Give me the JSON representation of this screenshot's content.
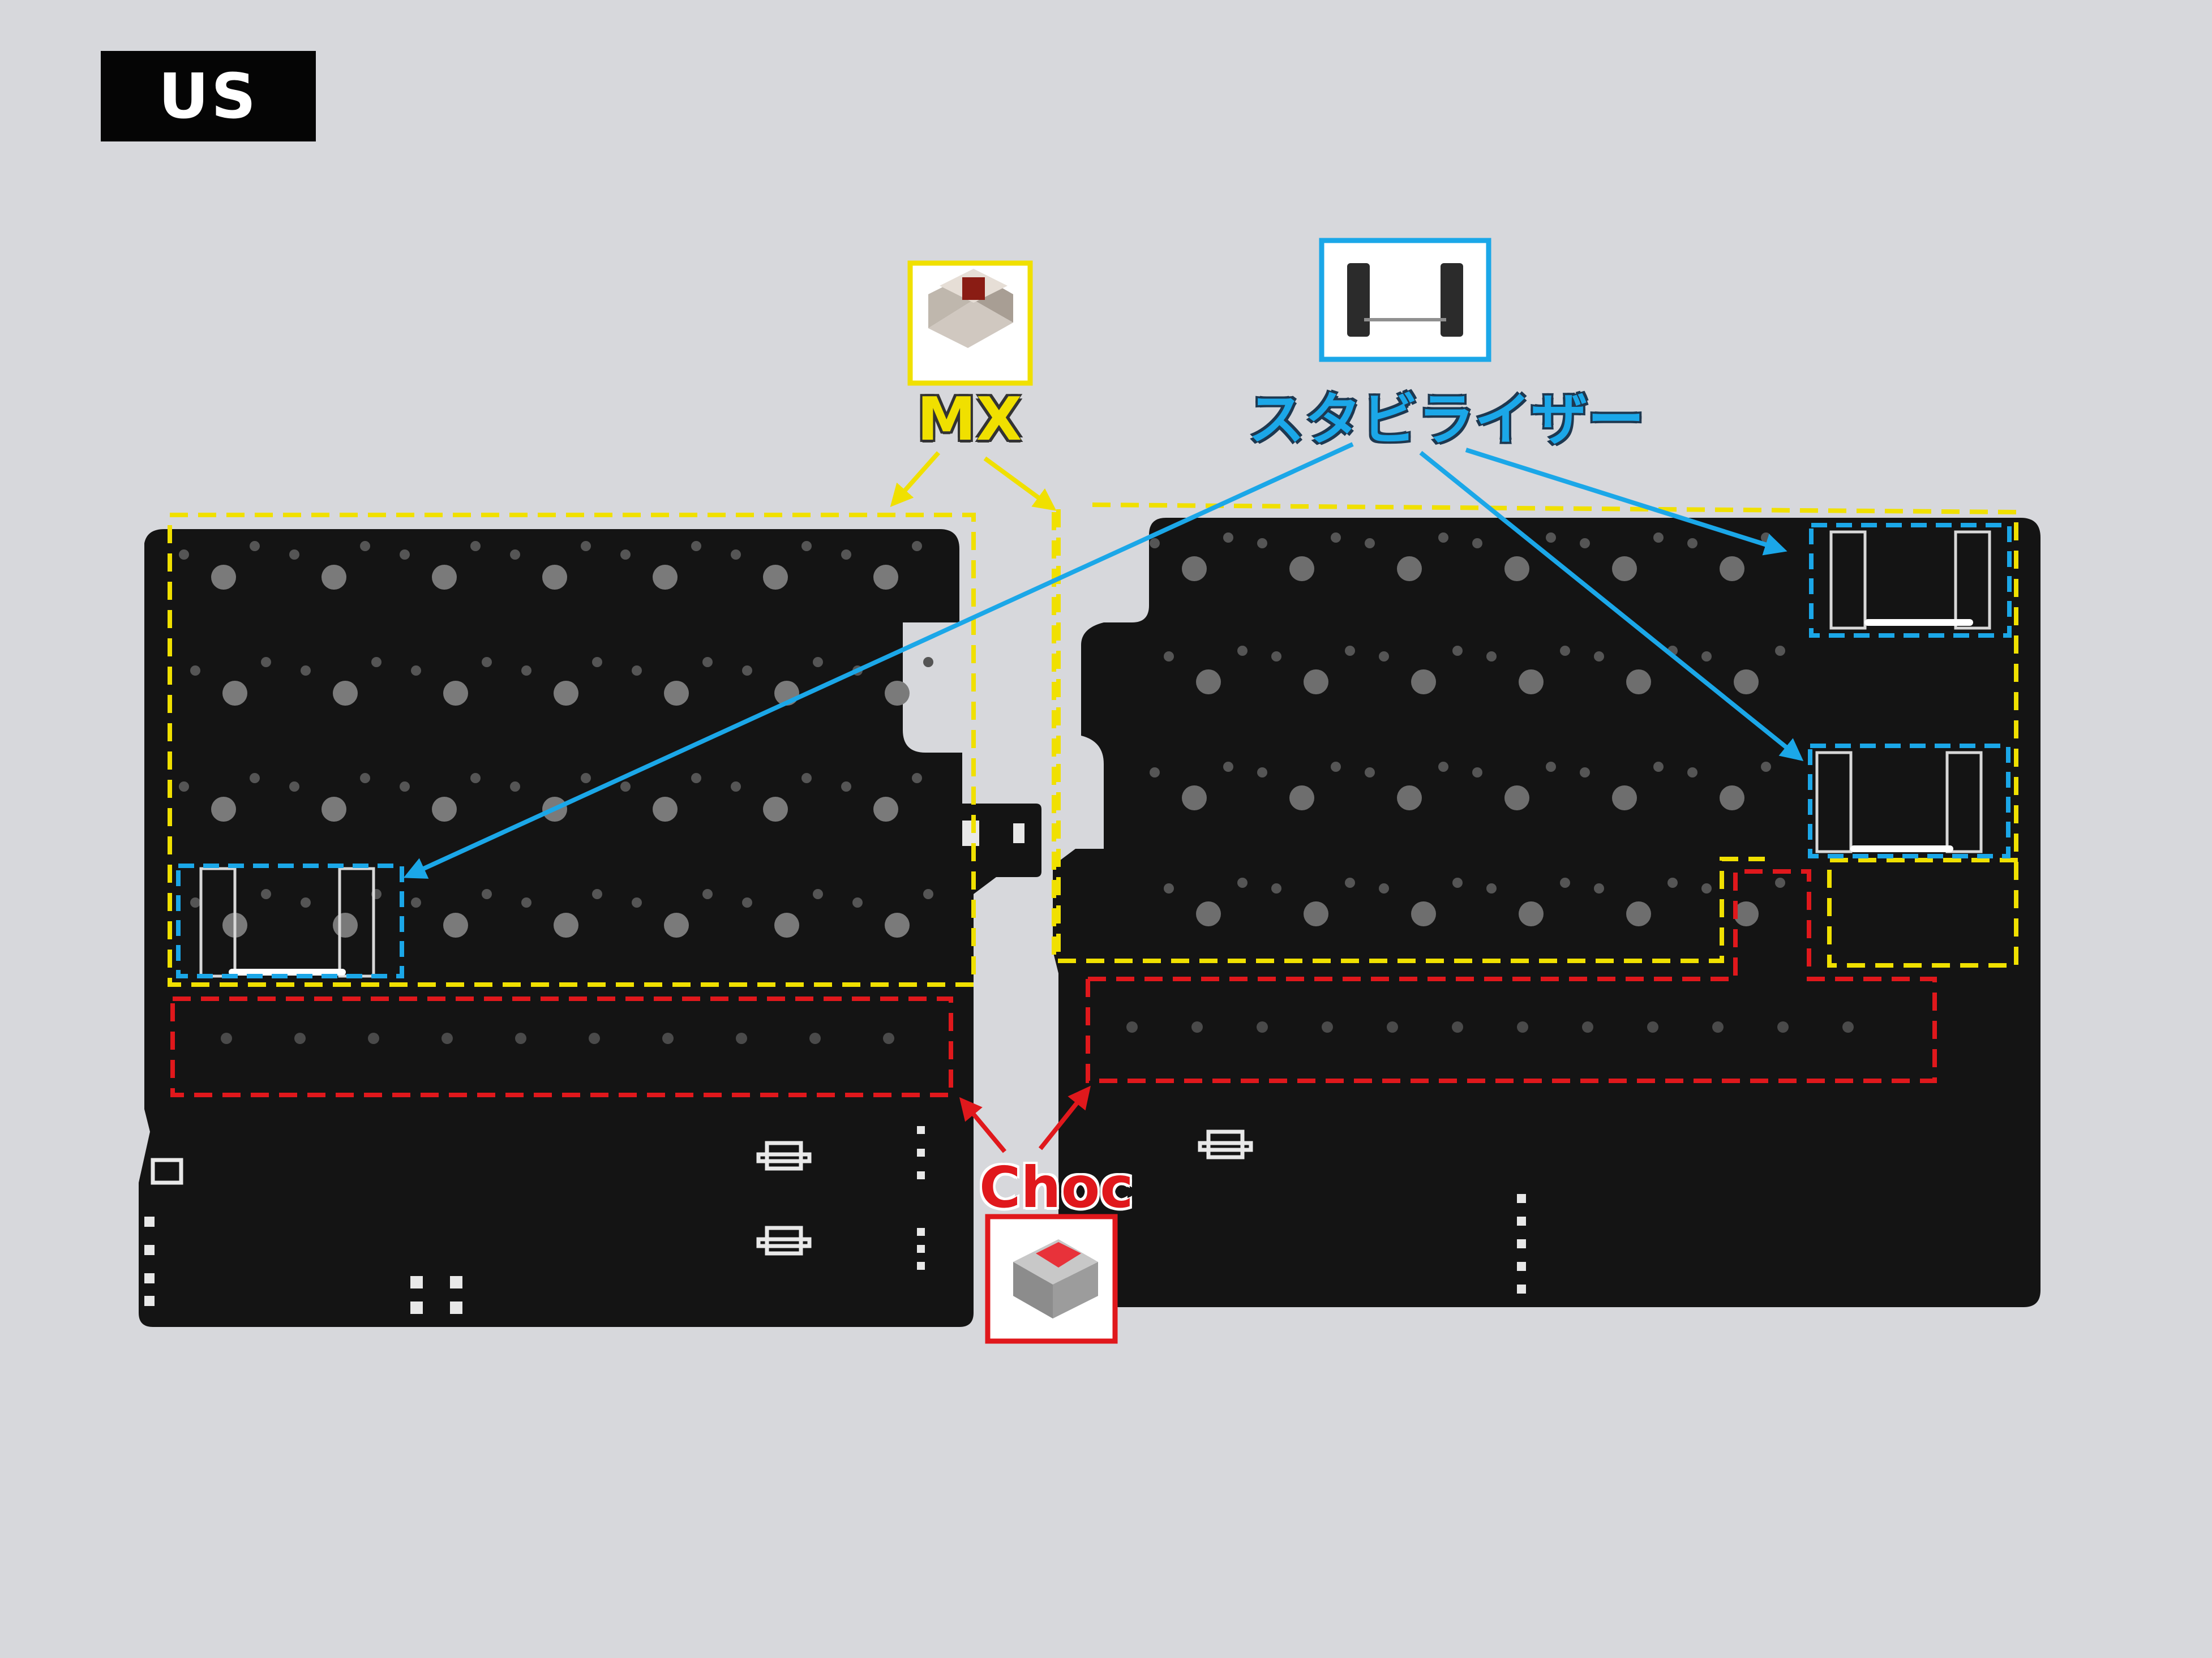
{
  "badge": {
    "text": "US"
  },
  "labels": {
    "mx": "MX",
    "stabilizer": "スタビライザー",
    "choc": "Choc"
  },
  "colors": {
    "background": "#d7d8dc",
    "pcb": "#141414",
    "mx_highlight": "#f0e000",
    "stabilizer_highlight": "#1ba7e8",
    "choc_highlight": "#e0181c"
  },
  "icons": {
    "mx_switch": "mx-switch-photo-icon",
    "stabilizer": "stabilizer-photo-icon",
    "choc_switch": "choc-switch-photo-icon"
  }
}
